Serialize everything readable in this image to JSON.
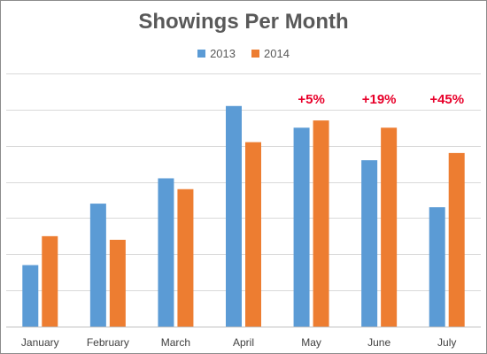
{
  "chart_data": {
    "type": "bar",
    "title": "Showings Per Month",
    "categories": [
      "January",
      "February",
      "March",
      "April",
      "May",
      "June",
      "July"
    ],
    "series": [
      {
        "name": "2013",
        "color": "#5b9bd5",
        "values": [
          17,
          34,
          41,
          61,
          55,
          46,
          33
        ]
      },
      {
        "name": "2014",
        "color": "#ed7d31",
        "values": [
          25,
          24,
          38,
          51,
          57,
          55,
          48
        ]
      }
    ],
    "annotations": [
      {
        "category": "May",
        "text": "+5%",
        "color": "#e8002a"
      },
      {
        "category": "June",
        "text": "+19%",
        "color": "#e8002a"
      },
      {
        "category": "July",
        "text": "+45%",
        "color": "#e8002a"
      }
    ],
    "ylim": [
      0,
      70
    ],
    "grid": true,
    "legend_position": "top"
  }
}
